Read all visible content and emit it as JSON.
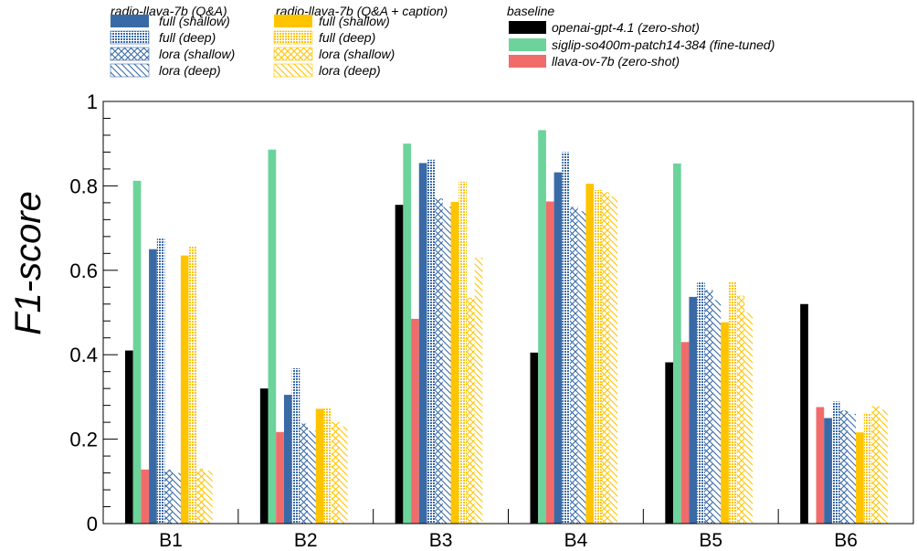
{
  "chart_data": {
    "type": "bar",
    "ylabel": "F1-score",
    "xlabel": "",
    "ylim": [
      0,
      1
    ],
    "yticks": [
      "0",
      "0.2",
      "0.4",
      "0.6",
      "0.8",
      "1"
    ],
    "categories": [
      "B1",
      "B2",
      "B3",
      "B4",
      "B5",
      "B6"
    ],
    "legend_groups": [
      {
        "title": "radio-llava-7b (Q&A)",
        "entries": [
          "full (shallow)",
          "full (deep)",
          "lora (shallow)",
          "lora (deep)"
        ]
      },
      {
        "title": "radio-llava-7b (Q&A + caption)",
        "entries": [
          "full (shallow)",
          "full (deep)",
          "lora (shallow)",
          "lora (deep)"
        ]
      },
      {
        "title": "baseline",
        "entries": [
          "openai-gpt-4.1 (zero-shot)",
          "siglip-so400m-patch14-384 (fine-tuned)",
          "llava-ov-7b (zero-shot)"
        ]
      }
    ],
    "series": [
      {
        "name": "openai-gpt-4.1 (zero-shot)",
        "group": "baseline",
        "color": "#000000",
        "pattern": "solid",
        "values": [
          0.41,
          0.32,
          0.755,
          0.405,
          0.382,
          0.52
        ]
      },
      {
        "name": "siglip-so400m-patch14-384 (fine-tuned)",
        "group": "baseline",
        "color": "#6cd39a",
        "pattern": "solid",
        "values": [
          0.812,
          0.886,
          0.9,
          0.932,
          0.853,
          null
        ]
      },
      {
        "name": "llava-ov-7b (zero-shot)",
        "group": "baseline",
        "color": "#f26b6b",
        "pattern": "solid",
        "values": [
          0.128,
          0.217,
          0.485,
          0.763,
          0.43,
          0.276
        ]
      },
      {
        "name": "full (shallow)",
        "group": "radio-llava-7b (Q&A)",
        "color": "#3a6aa6",
        "pattern": "solid",
        "values": [
          0.65,
          0.305,
          0.854,
          0.832,
          0.537,
          0.25
        ]
      },
      {
        "name": "full (deep)",
        "group": "radio-llava-7b (Q&A)",
        "color": "#3a6aa6",
        "pattern": "dots",
        "values": [
          0.675,
          0.368,
          0.862,
          0.88,
          0.571,
          0.289
        ]
      },
      {
        "name": "lora (shallow)",
        "group": "radio-llava-7b (Q&A)",
        "color": "#3a6aa6",
        "pattern": "cross",
        "values": [
          0.128,
          0.237,
          0.77,
          0.75,
          0.553,
          0.268
        ]
      },
      {
        "name": "lora (deep)",
        "group": "radio-llava-7b (Q&A)",
        "color": "#3a6aa6",
        "pattern": "diag",
        "values": [
          0.12,
          0.22,
          0.75,
          0.74,
          0.53,
          0.26
        ]
      },
      {
        "name": "full (shallow)",
        "group": "radio-llava-7b (Q&A + caption)",
        "color": "#ffc400",
        "pattern": "solid",
        "values": [
          0.635,
          0.272,
          0.762,
          0.805,
          0.477,
          0.216
        ]
      },
      {
        "name": "full (deep)",
        "group": "radio-llava-7b (Q&A + caption)",
        "color": "#ffc400",
        "pattern": "dots",
        "values": [
          0.657,
          0.274,
          0.81,
          0.79,
          0.573,
          0.262
        ]
      },
      {
        "name": "lora (shallow)",
        "group": "radio-llava-7b (Q&A + caption)",
        "color": "#ffc400",
        "pattern": "cross",
        "values": [
          0.13,
          0.24,
          0.535,
          0.785,
          0.54,
          0.278
        ]
      },
      {
        "name": "lora (deep)",
        "group": "radio-llava-7b (Q&A + caption)",
        "color": "#ffc400",
        "pattern": "diag",
        "values": [
          0.125,
          0.23,
          0.63,
          0.775,
          0.5,
          0.27
        ]
      }
    ],
    "grid": false,
    "legend_position": "top"
  }
}
